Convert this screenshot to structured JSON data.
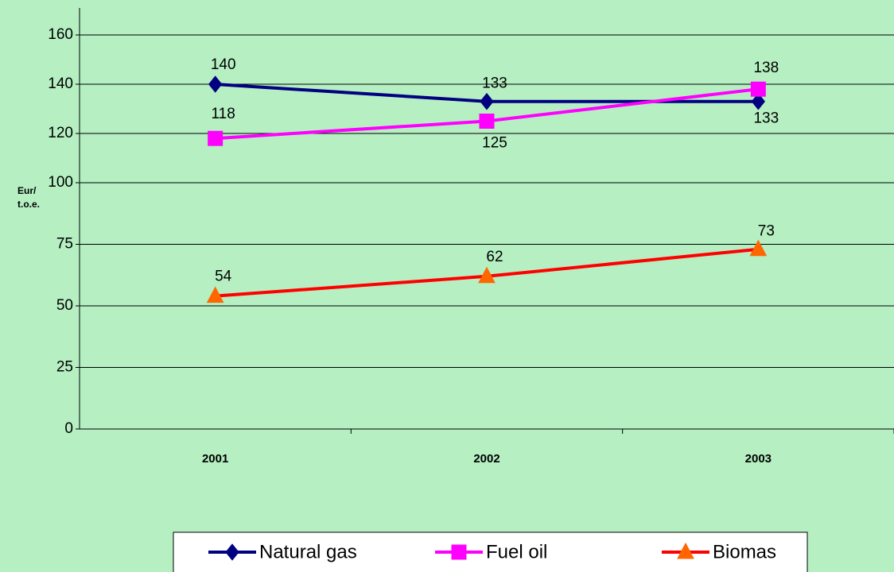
{
  "chart_data": {
    "type": "line",
    "ylabel": "Eur/t.o.e.",
    "categories": [
      "2001",
      "2002",
      "2003"
    ],
    "series": [
      {
        "name": "Natural gas",
        "color": "#000080",
        "marker": "diamond",
        "marker_color": "#000080",
        "values": [
          140,
          133,
          133
        ]
      },
      {
        "name": "Fuel oil",
        "color": "#ff00ff",
        "marker": "square",
        "marker_color": "#ff00ff",
        "values": [
          118,
          125,
          138
        ]
      },
      {
        "name": "Biomas",
        "color": "#ff0000",
        "marker": "triangle",
        "marker_color": "#ff6600",
        "values": [
          54,
          62,
          73
        ]
      }
    ],
    "ylim": [
      0,
      160
    ],
    "yticks": [
      0,
      25,
      50,
      75,
      100,
      120,
      140,
      160
    ],
    "grid": true,
    "legend": "bottom"
  }
}
